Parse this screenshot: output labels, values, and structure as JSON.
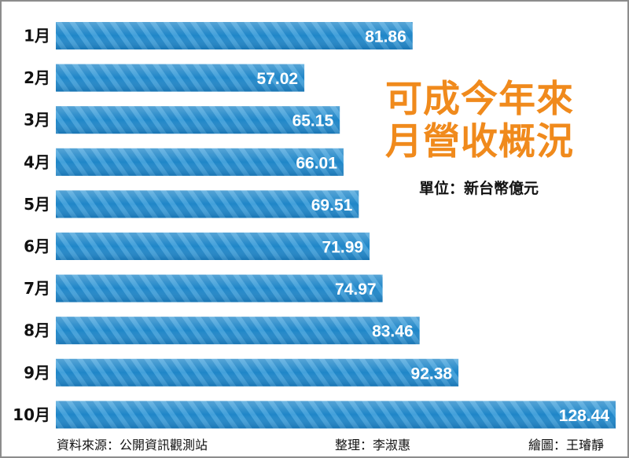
{
  "chart_data": {
    "type": "bar",
    "orientation": "horizontal",
    "title_lines": [
      "可成今年來",
      "月營收概況"
    ],
    "unit": "單位：新台幣億元",
    "categories": [
      "1月",
      "2月",
      "3月",
      "4月",
      "5月",
      "6月",
      "7月",
      "8月",
      "9月",
      "10月"
    ],
    "values": [
      81.86,
      57.02,
      65.15,
      66.01,
      69.51,
      71.99,
      74.97,
      83.46,
      92.38,
      128.44
    ],
    "value_labels": [
      "81.86",
      "57.02",
      "65.15",
      "66.01",
      "69.51",
      "71.99",
      "74.97",
      "83.46",
      "92.38",
      "128.44"
    ],
    "bar_color": "#1f86c8",
    "bar_stripe_color": "#5fb6e8",
    "title_color": "#f08a1c"
  },
  "footer": {
    "source": "資料來源：公開資訊觀測站",
    "editor": "整理：李淑惠",
    "artist": "繪圖：王璿靜"
  }
}
